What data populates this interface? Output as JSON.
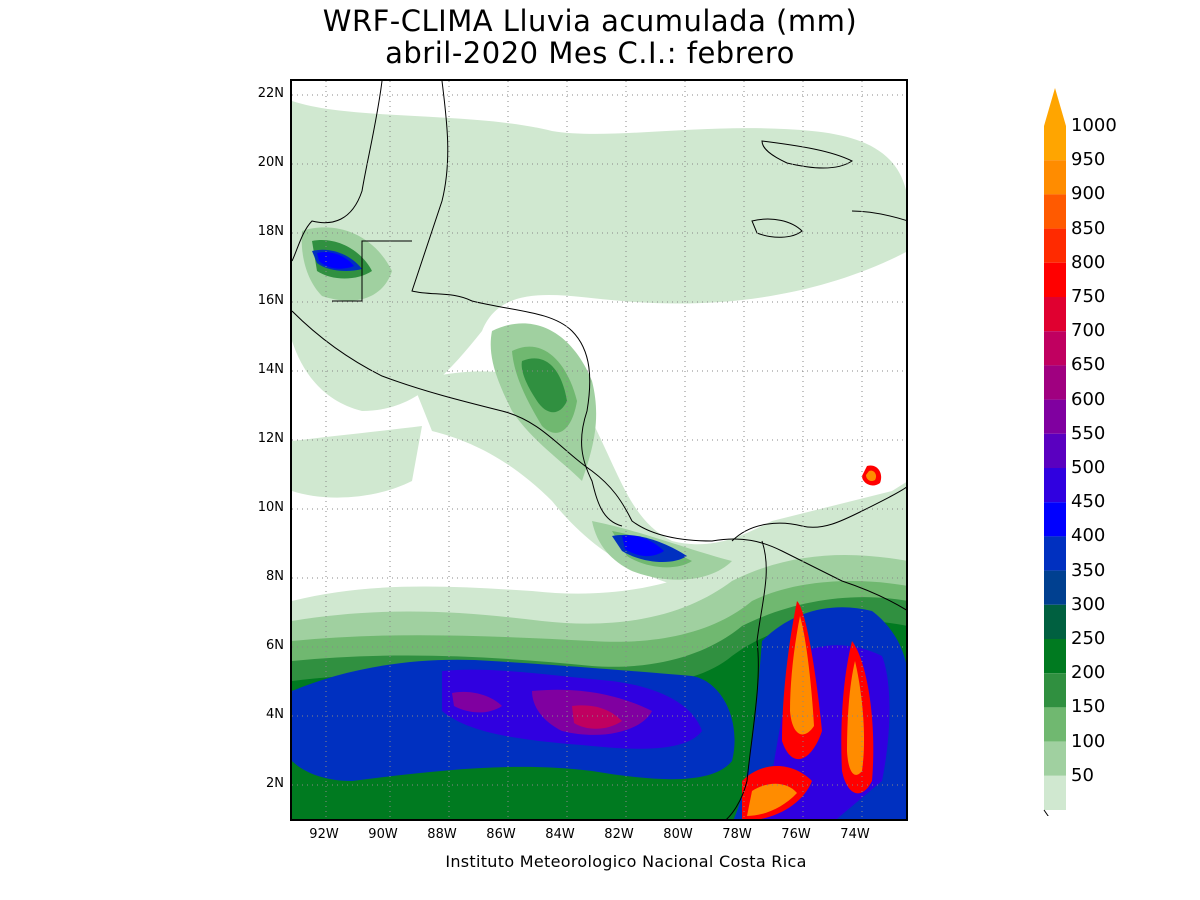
{
  "title": {
    "line1": "WRF-CLIMA Lluvia acumulada (mm)",
    "line2": "abril-2020 Mes C.I.: febrero"
  },
  "credit": "Instituto Meteorologico Nacional Costa Rica",
  "axes": {
    "lat_labels": [
      "22N",
      "20N",
      "18N",
      "16N",
      "14N",
      "12N",
      "10N",
      "8N",
      "6N",
      "4N",
      "2N"
    ],
    "lon_labels": [
      "92W",
      "90W",
      "88W",
      "86W",
      "84W",
      "82W",
      "80W",
      "78W",
      "76W",
      "74W"
    ]
  },
  "legend": {
    "levels": [
      "1000",
      "950",
      "900",
      "850",
      "800",
      "750",
      "700",
      "650",
      "600",
      "550",
      "500",
      "450",
      "400",
      "350",
      "300",
      "250",
      "200",
      "150",
      "100",
      "50"
    ],
    "colors": [
      "#ffa500",
      "#ff8c00",
      "#ff5a00",
      "#ff2a00",
      "#ff0000",
      "#e00030",
      "#c00060",
      "#a00080",
      "#8000a0",
      "#5a00c0",
      "#3000e0",
      "#0000ff",
      "#0030c0",
      "#004090",
      "#006040",
      "#007a20",
      "#309040",
      "#70b870",
      "#a0d0a0",
      "#d0e8d0"
    ]
  },
  "chart_data": {
    "type": "heatmap",
    "variable": "Lluvia acumulada (mm)",
    "period": "abril-2020",
    "lon_range": [
      "93.5W",
      "72.5W"
    ],
    "lat_range": [
      "1N",
      "22.5N"
    ],
    "levels_mm": [
      50,
      100,
      150,
      200,
      250,
      300,
      350,
      400,
      450,
      500,
      550,
      600,
      650,
      700,
      750,
      800,
      850,
      900,
      950,
      1000
    ]
  }
}
